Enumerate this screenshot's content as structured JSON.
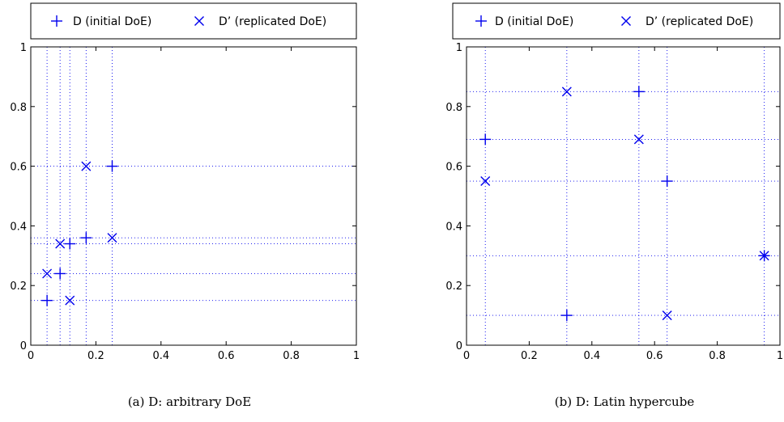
{
  "chart_data": [
    {
      "type": "scatter",
      "caption": "(a)  D: arbitrary DoE",
      "xlim": [
        0,
        1
      ],
      "ylim": [
        0,
        1
      ],
      "xticks": [
        "0",
        "0.2",
        "0.4",
        "0.6",
        "0.8",
        "1"
      ],
      "yticks": [
        "0",
        "0.2",
        "0.4",
        "0.6",
        "0.8",
        "1"
      ],
      "grid": "dotted lines through each design point",
      "legend_position": "top",
      "legend": [
        {
          "label": "D (initial DoE)",
          "marker": "plus"
        },
        {
          "label": "D’ (replicated DoE)",
          "marker": "cross"
        }
      ],
      "color": "#0000ee",
      "series": [
        {
          "name": "D (initial DoE)",
          "marker": "plus",
          "points": [
            [
              0.05,
              0.15
            ],
            [
              0.09,
              0.24
            ],
            [
              0.12,
              0.34
            ],
            [
              0.17,
              0.36
            ],
            [
              0.25,
              0.6
            ]
          ]
        },
        {
          "name": "D’ (replicated DoE)",
          "marker": "cross",
          "points": [
            [
              0.12,
              0.15
            ],
            [
              0.05,
              0.24
            ],
            [
              0.09,
              0.34
            ],
            [
              0.25,
              0.36
            ],
            [
              0.17,
              0.6
            ]
          ]
        }
      ]
    },
    {
      "type": "scatter",
      "caption": "(b)  D: Latin hypercube",
      "xlim": [
        0,
        1
      ],
      "ylim": [
        0,
        1
      ],
      "xticks": [
        "0",
        "0.2",
        "0.4",
        "0.6",
        "0.8",
        "1"
      ],
      "yticks": [
        "0",
        "0.2",
        "0.4",
        "0.6",
        "0.8",
        "1"
      ],
      "grid": "dotted lines through each design point",
      "legend_position": "top",
      "legend": [
        {
          "label": "D (initial DoE)",
          "marker": "plus"
        },
        {
          "label": "D’ (replicated DoE)",
          "marker": "cross"
        }
      ],
      "color": "#0000ee",
      "series": [
        {
          "name": "D (initial DoE)",
          "marker": "plus",
          "points": [
            [
              0.06,
              0.69
            ],
            [
              0.32,
              0.1
            ],
            [
              0.55,
              0.85
            ],
            [
              0.64,
              0.55
            ],
            [
              0.95,
              0.3
            ]
          ]
        },
        {
          "name": "D’ (replicated DoE)",
          "marker": "cross",
          "points": [
            [
              0.06,
              0.55
            ],
            [
              0.32,
              0.85
            ],
            [
              0.55,
              0.69
            ],
            [
              0.64,
              0.1
            ],
            [
              0.95,
              0.3
            ]
          ]
        }
      ]
    }
  ]
}
